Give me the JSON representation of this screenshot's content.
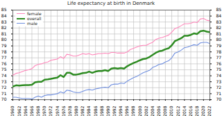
{
  "chart_data": {
    "type": "line",
    "title": "Life expectancy at birth in Denmark",
    "x": [
      1960,
      1961,
      1962,
      1963,
      1964,
      1965,
      1966,
      1967,
      1968,
      1969,
      1970,
      1971,
      1972,
      1973,
      1974,
      1975,
      1976,
      1977,
      1978,
      1979,
      1980,
      1981,
      1982,
      1983,
      1984,
      1985,
      1986,
      1987,
      1988,
      1989,
      1990,
      1991,
      1992,
      1993,
      1994,
      1995,
      1996,
      1997,
      1998,
      1999,
      2000,
      2001,
      2002,
      2003,
      2004,
      2005,
      2006,
      2007,
      2008,
      2009,
      2010,
      2011,
      2012,
      2013,
      2014,
      2015,
      2016,
      2017,
      2018,
      2019,
      2020,
      2021,
      2022
    ],
    "series": [
      {
        "name": "female",
        "color": "#ff88bb",
        "values": [
          74.1,
          74.4,
          74.5,
          74.7,
          74.9,
          75.0,
          75.2,
          75.7,
          75.9,
          76.0,
          76.2,
          76.3,
          76.6,
          76.7,
          76.8,
          77.2,
          76.9,
          77.6,
          77.5,
          77.3,
          77.3,
          77.5,
          77.7,
          77.6,
          77.7,
          77.5,
          77.6,
          77.7,
          77.7,
          77.8,
          77.7,
          77.9,
          77.9,
          77.8,
          77.8,
          77.8,
          78.0,
          78.4,
          78.6,
          78.8,
          79.0,
          79.1,
          79.1,
          79.4,
          79.6,
          80.1,
          80.3,
          80.4,
          80.6,
          80.8,
          81.3,
          81.9,
          82.1,
          82.4,
          82.7,
          82.7,
          82.8,
          83.0,
          82.9,
          83.5,
          83.6,
          83.3,
          83.2
        ]
      },
      {
        "name": "overall",
        "color": "#2e8b22",
        "values": [
          72.2,
          72.4,
          72.35,
          72.4,
          72.45,
          72.45,
          72.5,
          72.9,
          73.0,
          73.0,
          73.35,
          73.4,
          73.5,
          73.6,
          73.7,
          74.1,
          73.8,
          74.5,
          74.5,
          74.2,
          74.2,
          74.3,
          74.45,
          74.5,
          74.7,
          74.5,
          74.7,
          74.8,
          74.8,
          74.95,
          74.8,
          75.2,
          75.3,
          75.2,
          75.3,
          75.2,
          75.6,
          75.9,
          76.15,
          76.35,
          76.6,
          76.8,
          76.9,
          77.15,
          77.5,
          77.85,
          78.1,
          78.2,
          78.45,
          78.6,
          79.1,
          79.8,
          80.05,
          80.3,
          80.7,
          80.7,
          80.85,
          81.1,
          81.0,
          81.45,
          81.55,
          81.4,
          81.3
        ]
      },
      {
        "name": "male",
        "color": "#6f8fdf",
        "values": [
          70.4,
          70.4,
          70.3,
          70.2,
          70.2,
          70.2,
          70.1,
          70.4,
          70.6,
          70.4,
          70.7,
          70.8,
          70.8,
          70.9,
          71.0,
          71.3,
          71.1,
          71.6,
          71.5,
          71.3,
          71.2,
          71.2,
          71.4,
          71.6,
          71.7,
          71.6,
          71.8,
          71.9,
          72.0,
          72.1,
          72.0,
          72.5,
          72.6,
          72.6,
          72.8,
          72.7,
          73.1,
          73.4,
          73.7,
          73.9,
          74.2,
          74.5,
          74.7,
          74.9,
          75.4,
          75.6,
          75.9,
          76.0,
          76.3,
          76.5,
          77.0,
          77.8,
          78.0,
          78.3,
          78.7,
          78.8,
          79.0,
          79.2,
          79.1,
          79.5,
          79.6,
          79.6,
          79.4
        ]
      }
    ],
    "xlim": [
      1960,
      2022
    ],
    "xticks": [
      1960,
      1962,
      1964,
      1966,
      1968,
      1970,
      1972,
      1974,
      1976,
      1978,
      1980,
      1982,
      1984,
      1986,
      1988,
      1990,
      1992,
      1994,
      1996,
      1998,
      2000,
      2002,
      2004,
      2006,
      2008,
      2010,
      2012,
      2014,
      2016,
      2018,
      2020,
      2022
    ],
    "ylim": [
      70,
      85
    ],
    "yticks": [
      70,
      71,
      72,
      73,
      74,
      75,
      76,
      77,
      78,
      79,
      80,
      81,
      82,
      83,
      84,
      85
    ],
    "grid": true,
    "legend": "top-left"
  }
}
